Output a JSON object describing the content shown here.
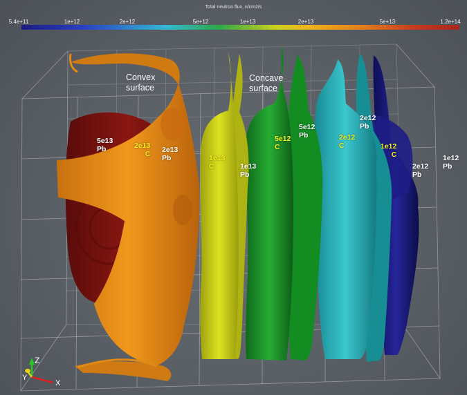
{
  "colorbar": {
    "title": "Total neutron flux, n/cm2/s",
    "ticks": [
      "5.4e+11",
      "1e+12",
      "2e+12",
      "5e+12",
      "1e+13",
      "2e+13",
      "5e+13",
      "1.2e+14"
    ]
  },
  "annotations": {
    "convex": "Convex\nsurface",
    "concave": "Concave\nsurface"
  },
  "labels": [
    {
      "text": "5e13\nPb",
      "color": "white"
    },
    {
      "text": "2e13\nC",
      "color": "yellow"
    },
    {
      "text": "2e13\nPb",
      "color": "white"
    },
    {
      "text": "1e13\nC",
      "color": "yellow"
    },
    {
      "text": "1e13\nPb",
      "color": "white"
    },
    {
      "text": "5e12\nC",
      "color": "yellow"
    },
    {
      "text": "5e12\nPb",
      "color": "white"
    },
    {
      "text": "2e12\nC",
      "color": "yellow"
    },
    {
      "text": "2e12\nPb",
      "color": "white"
    },
    {
      "text": "1e12\nC",
      "color": "yellow"
    },
    {
      "text": "2e12\nPb",
      "color": "white"
    },
    {
      "text": "1e12\nPb",
      "color": "white"
    }
  ],
  "axes_glyph": {
    "z": "Z",
    "y": "Y",
    "x": "X"
  },
  "colors": {
    "red": "#7a1410",
    "orange": "#e58714",
    "yellow": "#c8cc17",
    "green": "#1c9a2a",
    "cyan": "#26b3bd",
    "teal": "#148b90",
    "navy": "#1a1a72"
  }
}
